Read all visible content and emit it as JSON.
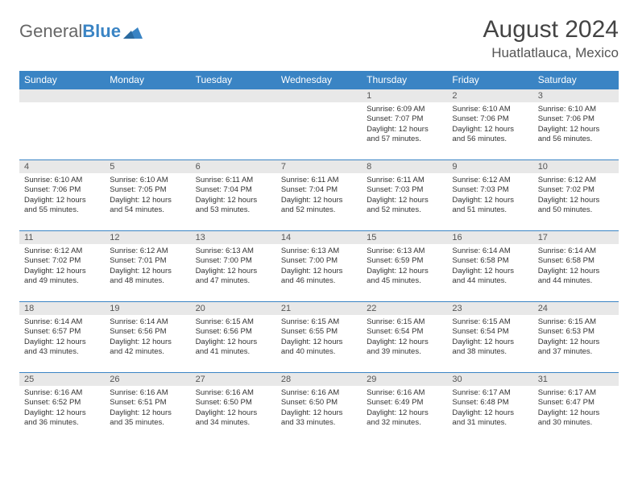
{
  "logo": {
    "part1": "General",
    "part2": "Blue"
  },
  "title": "August 2024",
  "location": "Huatlatlauca, Mexico",
  "colors": {
    "header_bg": "#3a84c4",
    "header_text": "#ffffff",
    "daynum_bg": "#e8e8e8",
    "border": "#3a84c4",
    "logo_gray": "#666666",
    "logo_blue": "#3a84c4"
  },
  "weekdays": [
    "Sunday",
    "Monday",
    "Tuesday",
    "Wednesday",
    "Thursday",
    "Friday",
    "Saturday"
  ],
  "weeks": [
    [
      {
        "day": "",
        "text": ""
      },
      {
        "day": "",
        "text": ""
      },
      {
        "day": "",
        "text": ""
      },
      {
        "day": "",
        "text": ""
      },
      {
        "day": "1",
        "text": "Sunrise: 6:09 AM\nSunset: 7:07 PM\nDaylight: 12 hours and 57 minutes."
      },
      {
        "day": "2",
        "text": "Sunrise: 6:10 AM\nSunset: 7:06 PM\nDaylight: 12 hours and 56 minutes."
      },
      {
        "day": "3",
        "text": "Sunrise: 6:10 AM\nSunset: 7:06 PM\nDaylight: 12 hours and 56 minutes."
      }
    ],
    [
      {
        "day": "4",
        "text": "Sunrise: 6:10 AM\nSunset: 7:06 PM\nDaylight: 12 hours and 55 minutes."
      },
      {
        "day": "5",
        "text": "Sunrise: 6:10 AM\nSunset: 7:05 PM\nDaylight: 12 hours and 54 minutes."
      },
      {
        "day": "6",
        "text": "Sunrise: 6:11 AM\nSunset: 7:04 PM\nDaylight: 12 hours and 53 minutes."
      },
      {
        "day": "7",
        "text": "Sunrise: 6:11 AM\nSunset: 7:04 PM\nDaylight: 12 hours and 52 minutes."
      },
      {
        "day": "8",
        "text": "Sunrise: 6:11 AM\nSunset: 7:03 PM\nDaylight: 12 hours and 52 minutes."
      },
      {
        "day": "9",
        "text": "Sunrise: 6:12 AM\nSunset: 7:03 PM\nDaylight: 12 hours and 51 minutes."
      },
      {
        "day": "10",
        "text": "Sunrise: 6:12 AM\nSunset: 7:02 PM\nDaylight: 12 hours and 50 minutes."
      }
    ],
    [
      {
        "day": "11",
        "text": "Sunrise: 6:12 AM\nSunset: 7:02 PM\nDaylight: 12 hours and 49 minutes."
      },
      {
        "day": "12",
        "text": "Sunrise: 6:12 AM\nSunset: 7:01 PM\nDaylight: 12 hours and 48 minutes."
      },
      {
        "day": "13",
        "text": "Sunrise: 6:13 AM\nSunset: 7:00 PM\nDaylight: 12 hours and 47 minutes."
      },
      {
        "day": "14",
        "text": "Sunrise: 6:13 AM\nSunset: 7:00 PM\nDaylight: 12 hours and 46 minutes."
      },
      {
        "day": "15",
        "text": "Sunrise: 6:13 AM\nSunset: 6:59 PM\nDaylight: 12 hours and 45 minutes."
      },
      {
        "day": "16",
        "text": "Sunrise: 6:14 AM\nSunset: 6:58 PM\nDaylight: 12 hours and 44 minutes."
      },
      {
        "day": "17",
        "text": "Sunrise: 6:14 AM\nSunset: 6:58 PM\nDaylight: 12 hours and 44 minutes."
      }
    ],
    [
      {
        "day": "18",
        "text": "Sunrise: 6:14 AM\nSunset: 6:57 PM\nDaylight: 12 hours and 43 minutes."
      },
      {
        "day": "19",
        "text": "Sunrise: 6:14 AM\nSunset: 6:56 PM\nDaylight: 12 hours and 42 minutes."
      },
      {
        "day": "20",
        "text": "Sunrise: 6:15 AM\nSunset: 6:56 PM\nDaylight: 12 hours and 41 minutes."
      },
      {
        "day": "21",
        "text": "Sunrise: 6:15 AM\nSunset: 6:55 PM\nDaylight: 12 hours and 40 minutes."
      },
      {
        "day": "22",
        "text": "Sunrise: 6:15 AM\nSunset: 6:54 PM\nDaylight: 12 hours and 39 minutes."
      },
      {
        "day": "23",
        "text": "Sunrise: 6:15 AM\nSunset: 6:54 PM\nDaylight: 12 hours and 38 minutes."
      },
      {
        "day": "24",
        "text": "Sunrise: 6:15 AM\nSunset: 6:53 PM\nDaylight: 12 hours and 37 minutes."
      }
    ],
    [
      {
        "day": "25",
        "text": "Sunrise: 6:16 AM\nSunset: 6:52 PM\nDaylight: 12 hours and 36 minutes."
      },
      {
        "day": "26",
        "text": "Sunrise: 6:16 AM\nSunset: 6:51 PM\nDaylight: 12 hours and 35 minutes."
      },
      {
        "day": "27",
        "text": "Sunrise: 6:16 AM\nSunset: 6:50 PM\nDaylight: 12 hours and 34 minutes."
      },
      {
        "day": "28",
        "text": "Sunrise: 6:16 AM\nSunset: 6:50 PM\nDaylight: 12 hours and 33 minutes."
      },
      {
        "day": "29",
        "text": "Sunrise: 6:16 AM\nSunset: 6:49 PM\nDaylight: 12 hours and 32 minutes."
      },
      {
        "day": "30",
        "text": "Sunrise: 6:17 AM\nSunset: 6:48 PM\nDaylight: 12 hours and 31 minutes."
      },
      {
        "day": "31",
        "text": "Sunrise: 6:17 AM\nSunset: 6:47 PM\nDaylight: 12 hours and 30 minutes."
      }
    ]
  ]
}
